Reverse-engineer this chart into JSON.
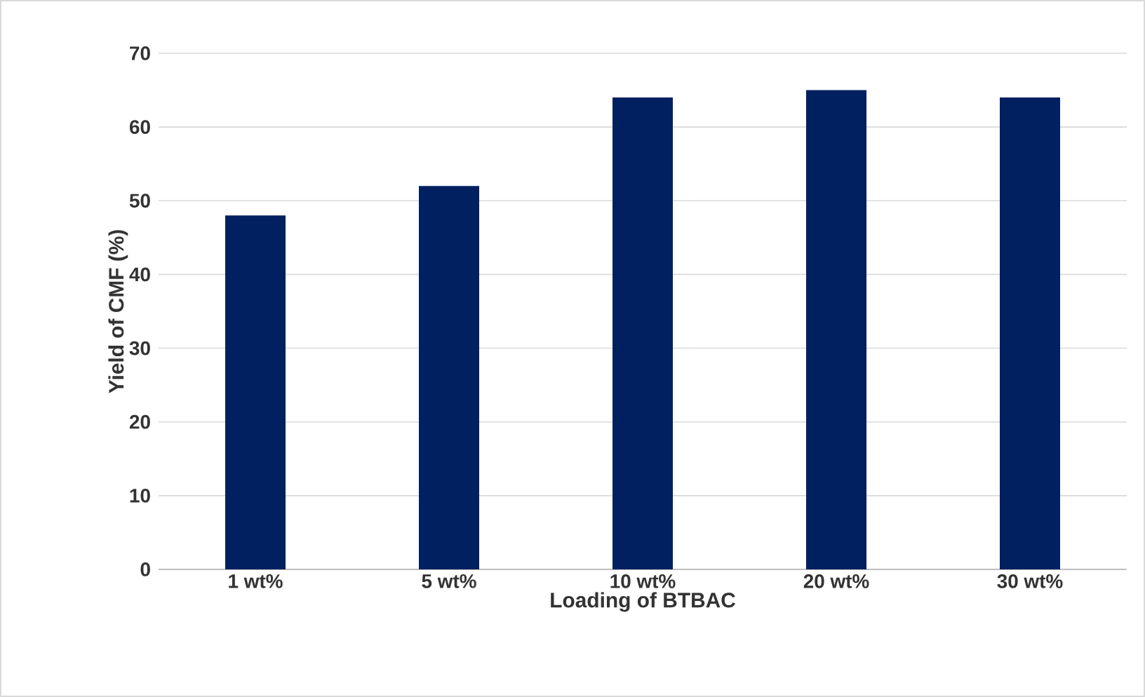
{
  "chart_data": {
    "type": "bar",
    "xlabel": "Loading of BTBAC",
    "ylabel": "Yield of CMF (%)",
    "categories": [
      "1 wt%",
      "5 wt%",
      "10 wt%",
      "20 wt%",
      "30 wt%"
    ],
    "values": [
      48,
      52,
      64,
      65,
      64
    ],
    "color": "#002060",
    "ylim": [
      0,
      70
    ],
    "yticks": [
      0,
      10,
      20,
      30,
      40,
      50,
      60,
      70
    ],
    "grid": "y"
  }
}
